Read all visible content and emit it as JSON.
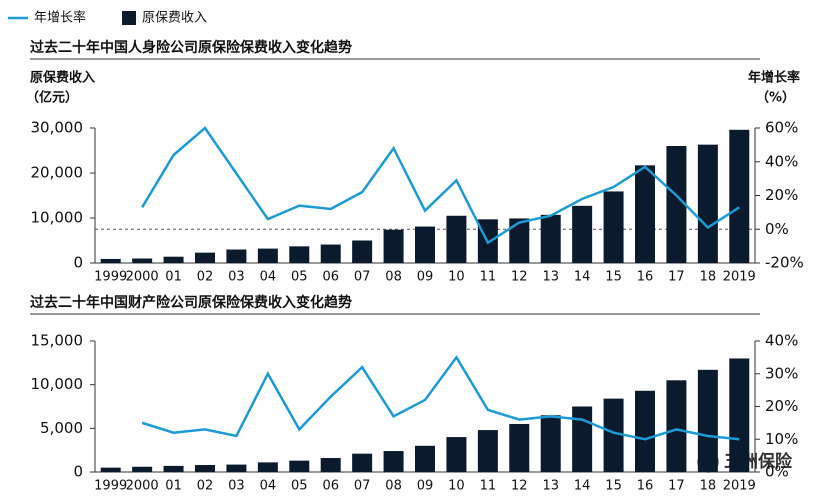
{
  "chart_data": [
    {
      "type": "combo",
      "title": "过去二十年中国人身险公司原保险保费收入变化趋势",
      "ylabel": "原保费收入",
      "yunit": "（亿元）",
      "y2label": "年增长率",
      "y2unit": "（%）",
      "categories": [
        "1999",
        "2000",
        "01",
        "02",
        "03",
        "04",
        "05",
        "06",
        "07",
        "08",
        "09",
        "10",
        "11",
        "12",
        "13",
        "14",
        "15",
        "16",
        "17",
        "18",
        "2019"
      ],
      "series": [
        {
          "name": "年增长率",
          "type": "line",
          "axis": "y2",
          "color": "#1b9bd7",
          "values": [
            null,
            13,
            44,
            60,
            33,
            6,
            14,
            12,
            22,
            48,
            11,
            29,
            -8,
            4,
            8,
            18,
            25,
            37,
            20,
            1,
            13
          ]
        },
        {
          "name": "原保费收入",
          "type": "bar",
          "color": "#0b1a2c",
          "values": [
            900,
            1000,
            1400,
            2300,
            3000,
            3200,
            3700,
            4100,
            5000,
            7400,
            8100,
            10500,
            9700,
            9900,
            10700,
            12700,
            15900,
            21700,
            26000,
            26300,
            29600
          ]
        }
      ],
      "ylim": [
        0,
        30000
      ],
      "yticks": [
        0,
        {
          "value": 10000,
          "label": "10,000"
        },
        {
          "value": 20000,
          "label": "20,000"
        },
        {
          "value": 30000,
          "label": "30,000"
        }
      ],
      "y2lim": [
        -20,
        60
      ],
      "y2ticks": [
        {
          "value": -20,
          "label": "-20%"
        },
        {
          "value": 0,
          "label": "0%"
        },
        {
          "value": 20,
          "label": "20%"
        },
        {
          "value": 40,
          "label": "40%"
        },
        {
          "value": 60,
          "label": "60%"
        }
      ],
      "zero_line": true
    },
    {
      "type": "combo",
      "title": "过去二十年中国财产险公司原保险保费收入变化趋势",
      "categories": [
        "1999",
        "2000",
        "01",
        "02",
        "03",
        "04",
        "05",
        "06",
        "07",
        "08",
        "09",
        "10",
        "11",
        "12",
        "13",
        "14",
        "15",
        "16",
        "17",
        "18",
        "2019"
      ],
      "series": [
        {
          "type": "line",
          "axis": "y2",
          "color": "#1b9bd7",
          "values": [
            null,
            15,
            12,
            13,
            11,
            30,
            13,
            23,
            32,
            17,
            22,
            35,
            19,
            16,
            17,
            16,
            12,
            10,
            13,
            11,
            10
          ]
        },
        {
          "type": "bar",
          "color": "#0b1a2c",
          "values": [
            500,
            600,
            700,
            800,
            850,
            1100,
            1300,
            1600,
            2100,
            2400,
            3000,
            4000,
            4800,
            5500,
            6500,
            7500,
            8400,
            9300,
            10500,
            11700,
            13000
          ]
        }
      ],
      "ylim": [
        0,
        15000
      ],
      "yticks": [
        0,
        {
          "value": 5000,
          "label": "5,000"
        },
        {
          "value": 10000,
          "label": "10,000"
        },
        {
          "value": 15000,
          "label": "15,000"
        }
      ],
      "y2lim": [
        0,
        40
      ],
      "y2ticks": [
        {
          "value": 0,
          "label": "0%"
        },
        {
          "value": 10,
          "label": "10%"
        },
        {
          "value": 20,
          "label": "20%"
        },
        {
          "value": 30,
          "label": "30%"
        },
        {
          "value": 40,
          "label": "40%"
        }
      ],
      "zero_line": false
    }
  ],
  "watermark": "五洲保险"
}
